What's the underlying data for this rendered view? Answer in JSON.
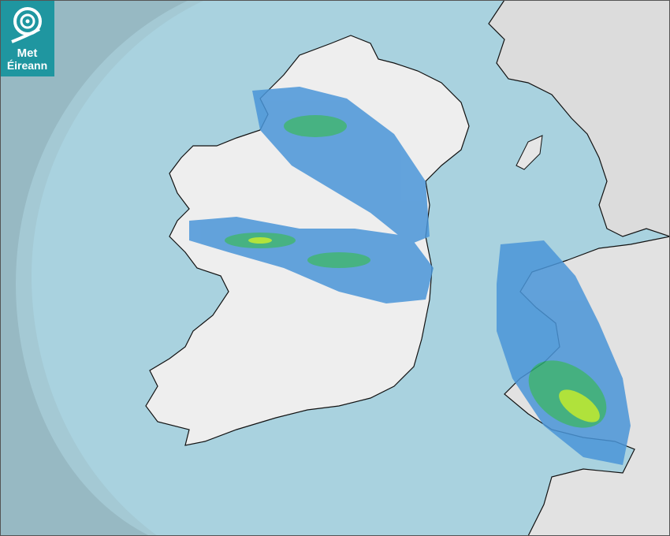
{
  "logo": {
    "line1": "Met",
    "line2": "Éireann"
  },
  "map": {
    "type": "precipitation radar",
    "colors": {
      "sea": "#a9d2df",
      "out_of_range": "#97b9c3",
      "land": "#eeeeee",
      "rain_light": "#4a95d8",
      "rain_moderate": "#2aa870",
      "rain_heavy": "#a8e21e",
      "logo_bg": "#1f96a0"
    }
  }
}
